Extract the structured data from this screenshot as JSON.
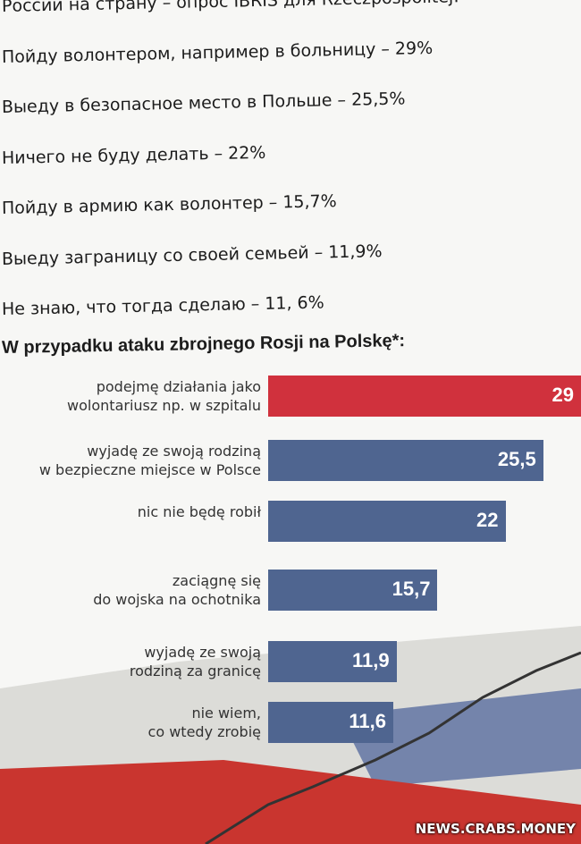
{
  "text_list": [
    "России на страну – опрос IBRIS для Rzeczpospolitej:",
    "Пойду волонтером, например в больницу – 29%",
    "Выеду в безопасное место в Польше – 25,5%",
    "Ничего не буду делать – 22%",
    "Пойду в армию как волонтер – 15,7%",
    "Выеду заграницу со своей семьей – 11,9%",
    "Не знаю, что тогда сделаю – 11, 6%"
  ],
  "chart_data": {
    "type": "bar",
    "orientation": "horizontal",
    "title": "W przypadku ataku zbrojnego Rosji na Polskę*:",
    "categories": [
      "podejmę działania jako\nwolontariusz np. w szpitalu",
      "wyjadę ze swoją rodziną\nw bezpieczne miejsce w Polsce",
      "nic nie będę robił",
      "zaciągnę się\ndo wojska na ochotnika",
      "wyjadę ze swoją\nrodziną za granicę",
      "nie wiem,\nco wtedy zrobię"
    ],
    "values": [
      29,
      25.5,
      22,
      15.7,
      11.9,
      11.6
    ],
    "value_labels": [
      "29",
      "25,5",
      "22",
      "15,7",
      "11,9",
      "11,6"
    ],
    "colors": [
      "#d0313d",
      "#4f6590",
      "#4f6590",
      "#4f6590",
      "#4f6590",
      "#4f6590"
    ]
  },
  "watermark": "NEWS.CRABS.MONEY"
}
